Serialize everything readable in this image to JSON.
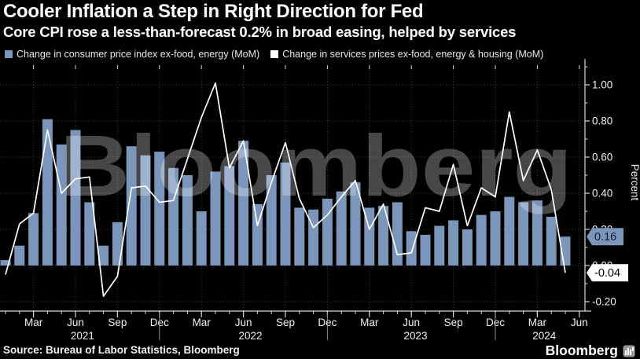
{
  "header": {
    "title": "Cooler Inflation a Step in Right Direction for Fed",
    "subtitle": "Core CPI rose a less-than-forecast 0.2% in broad easing, helped by services"
  },
  "legend": {
    "items": [
      {
        "label": "Change in consumer price index ex-food, energy (MoM)",
        "color": "#7b95bb"
      },
      {
        "label": "Change in services prices ex-food, energy & housing (MoM)",
        "color": "#ffffff"
      }
    ]
  },
  "watermark": "Bloomberg",
  "footer": {
    "source": "Source: Bureau of Labor Statistics, Bloomberg",
    "logo": "Bloomberg"
  },
  "chart_data": {
    "type": "bar+line",
    "title": "Cooler Inflation a Step in Right Direction for Fed",
    "ylabel": "Percent",
    "ylim": [
      -0.25,
      1.11
    ],
    "y_major_ticks": [
      "1.00",
      "0.80",
      "0.60",
      "0.40",
      "0.20",
      "0.00",
      "-0.20"
    ],
    "y_major_values": [
      1.0,
      0.8,
      0.6,
      0.4,
      0.2,
      0.0,
      -0.2
    ],
    "y_minor_step": 0.1,
    "grid": "dotted",
    "legend_position": "top",
    "months": [
      "2021-01",
      "2021-02",
      "2021-03",
      "2021-04",
      "2021-05",
      "2021-06",
      "2021-07",
      "2021-08",
      "2021-09",
      "2021-10",
      "2021-11",
      "2021-12",
      "2022-01",
      "2022-02",
      "2022-03",
      "2022-04",
      "2022-05",
      "2022-06",
      "2022-07",
      "2022-08",
      "2022-09",
      "2022-10",
      "2022-11",
      "2022-12",
      "2023-01",
      "2023-02",
      "2023-03",
      "2023-04",
      "2023-05",
      "2023-06",
      "2023-07",
      "2023-08",
      "2023-09",
      "2023-10",
      "2023-11",
      "2023-12",
      "2024-01",
      "2024-02",
      "2024-03",
      "2024-04",
      "2024-05"
    ],
    "series": [
      {
        "name": "Change in consumer price index ex-food, energy (MoM)",
        "type": "bar",
        "color": "#7b95bb",
        "values": [
          0.03,
          0.11,
          0.29,
          0.81,
          0.67,
          0.75,
          0.35,
          0.11,
          0.24,
          0.66,
          0.61,
          0.63,
          0.54,
          0.5,
          0.3,
          0.52,
          0.55,
          0.69,
          0.34,
          0.5,
          0.57,
          0.32,
          0.31,
          0.37,
          0.41,
          0.46,
          0.32,
          0.33,
          0.35,
          0.19,
          0.17,
          0.22,
          0.25,
          0.2,
          0.28,
          0.3,
          0.38,
          0.35,
          0.36,
          0.27,
          0.16
        ]
      },
      {
        "name": "Change in services prices ex-food, energy & housing (MoM)",
        "type": "line",
        "color": "#ffffff",
        "values": [
          -0.05,
          0.23,
          0.29,
          0.75,
          0.4,
          0.48,
          0.49,
          -0.17,
          -0.06,
          0.43,
          0.44,
          0.35,
          0.36,
          0.59,
          0.82,
          1.01,
          0.54,
          0.69,
          0.22,
          0.46,
          0.68,
          0.37,
          0.21,
          0.28,
          0.38,
          0.47,
          0.2,
          0.34,
          0.06,
          0.07,
          0.32,
          0.3,
          0.56,
          0.22,
          0.43,
          0.38,
          0.85,
          0.47,
          0.64,
          0.42,
          -0.04
        ]
      }
    ],
    "x_quarter_ticks": [
      {
        "i": 2,
        "l": "Mar"
      },
      {
        "i": 5,
        "l": "Jun"
      },
      {
        "i": 8,
        "l": "Sep"
      },
      {
        "i": 11,
        "l": "Dec"
      },
      {
        "i": 14,
        "l": "Mar"
      },
      {
        "i": 17,
        "l": "Jun"
      },
      {
        "i": 20,
        "l": "Sep"
      },
      {
        "i": 23,
        "l": "Dec"
      },
      {
        "i": 26,
        "l": "Mar"
      },
      {
        "i": 29,
        "l": "Jun"
      },
      {
        "i": 32,
        "l": "Sep"
      },
      {
        "i": 35,
        "l": "Dec"
      },
      {
        "i": 38,
        "l": "Mar"
      },
      {
        "i": 41,
        "l": "Jun"
      }
    ],
    "x_years": [
      {
        "label": "2021",
        "i": 5.5
      },
      {
        "label": "2022",
        "i": 17.5
      },
      {
        "label": "2023",
        "i": 29.3
      },
      {
        "label": "2024",
        "i": 38.5
      }
    ],
    "year_separator_indices": [
      11,
      23,
      35
    ],
    "last_value_badges": [
      {
        "label": "0.16",
        "value": 0.16,
        "bg": "#7b95bb",
        "fg": "#101c30"
      },
      {
        "label": "-0.04",
        "value": -0.04,
        "bg": "#ffffff",
        "fg": "#000000"
      }
    ],
    "colors": {
      "grid": "rgba(255,255,255,0.25)",
      "axis": "#d9d9d9",
      "tick_label": "#f0f0f0",
      "watermark": "rgba(255,255,255,0.28)"
    }
  }
}
